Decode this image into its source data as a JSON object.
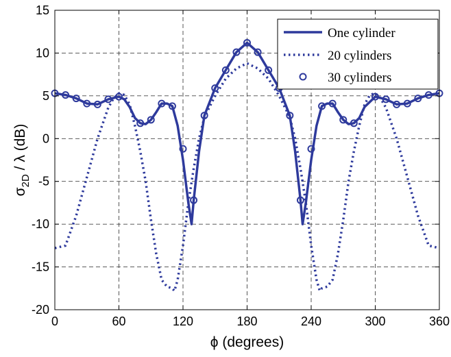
{
  "chart_data": {
    "type": "line",
    "xlabel": "ϕ (degrees)",
    "ylabel_main": "σ",
    "ylabel_sub": "2D",
    "ylabel_rest": " / λ (dB)",
    "xlim": [
      0,
      360
    ],
    "ylim": [
      -20,
      15
    ],
    "xticks": [
      0,
      60,
      120,
      180,
      240,
      300,
      360
    ],
    "yticks": [
      -20,
      -15,
      -10,
      -5,
      0,
      5,
      10,
      15
    ],
    "grid": true,
    "legend_position": "top-right",
    "series": [
      {
        "name": "One cylinder",
        "style": "solid",
        "color": "#2e3a9c",
        "x": [
          0,
          10,
          20,
          30,
          40,
          50,
          60,
          65,
          70,
          75,
          80,
          85,
          90,
          95,
          100,
          105,
          110,
          115,
          120,
          125,
          128,
          130,
          135,
          140,
          150,
          160,
          170,
          180,
          190,
          200,
          210,
          220,
          225,
          230,
          232,
          235,
          240,
          245,
          250,
          255,
          260,
          265,
          270,
          275,
          280,
          285,
          290,
          300,
          310,
          320,
          330,
          340,
          350,
          360
        ],
        "y": [
          5.3,
          5.1,
          4.7,
          4.1,
          4.0,
          4.6,
          4.9,
          4.6,
          3.7,
          2.4,
          1.8,
          1.7,
          2.2,
          3.1,
          4.1,
          4.1,
          3.8,
          1.5,
          -2.5,
          -7.5,
          -10.0,
          -7.2,
          -1.5,
          2.7,
          5.9,
          8.0,
          10.1,
          11.2,
          10.1,
          8.0,
          5.9,
          2.7,
          -1.5,
          -7.2,
          -10.0,
          -7.5,
          -2.5,
          1.5,
          3.8,
          4.1,
          4.1,
          3.1,
          2.2,
          1.7,
          1.8,
          2.4,
          3.7,
          4.9,
          4.6,
          4.0,
          4.1,
          4.7,
          5.1,
          5.3
        ]
      },
      {
        "name": "20 cylinders",
        "style": "dotted",
        "color": "#2e3a9c",
        "x": [
          0,
          10,
          20,
          30,
          40,
          50,
          55,
          60,
          65,
          70,
          75,
          80,
          85,
          90,
          95,
          100,
          105,
          110,
          112,
          115,
          120,
          125,
          130,
          135,
          140,
          150,
          160,
          170,
          180,
          190,
          200,
          210,
          220,
          225,
          230,
          235,
          240,
          245,
          248,
          250,
          255,
          260,
          265,
          270,
          275,
          280,
          285,
          290,
          295,
          300,
          305,
          310,
          320,
          330,
          340,
          350,
          360
        ],
        "y": [
          -12.8,
          -12.5,
          -9.0,
          -4.5,
          0.0,
          3.6,
          4.7,
          5.3,
          5.1,
          4.0,
          1.5,
          -1.5,
          -5.0,
          -9.5,
          -13.5,
          -16.5,
          -17.3,
          -17.5,
          -17.8,
          -16.5,
          -12.5,
          -7.5,
          -3.5,
          0.0,
          2.5,
          5.0,
          7.0,
          8.2,
          8.8,
          8.2,
          7.0,
          5.0,
          2.5,
          0.0,
          -3.5,
          -7.5,
          -12.5,
          -16.5,
          -17.8,
          -17.5,
          -17.3,
          -16.5,
          -13.5,
          -9.5,
          -5.0,
          -1.5,
          1.5,
          4.0,
          5.1,
          5.3,
          4.7,
          3.6,
          0.0,
          -4.5,
          -9.0,
          -12.5,
          -12.8
        ]
      },
      {
        "name": "30 cylinders",
        "style": "markers",
        "color": "#2e3a9c",
        "x": [
          0,
          10,
          20,
          30,
          40,
          50,
          60,
          80,
          90,
          100,
          110,
          120,
          130,
          140,
          150,
          160,
          170,
          180,
          190,
          200,
          210,
          220,
          230,
          240,
          250,
          260,
          270,
          280,
          300,
          310,
          320,
          330,
          340,
          350,
          360
        ],
        "y": [
          5.3,
          5.1,
          4.7,
          4.1,
          4.0,
          4.6,
          4.9,
          1.8,
          2.2,
          4.1,
          3.8,
          -1.2,
          -7.2,
          2.7,
          5.9,
          8.0,
          10.1,
          11.2,
          10.1,
          8.0,
          5.9,
          2.7,
          -7.2,
          -1.2,
          3.8,
          4.1,
          2.2,
          1.8,
          4.9,
          4.6,
          4.0,
          4.1,
          4.7,
          5.1,
          5.3
        ]
      }
    ]
  }
}
